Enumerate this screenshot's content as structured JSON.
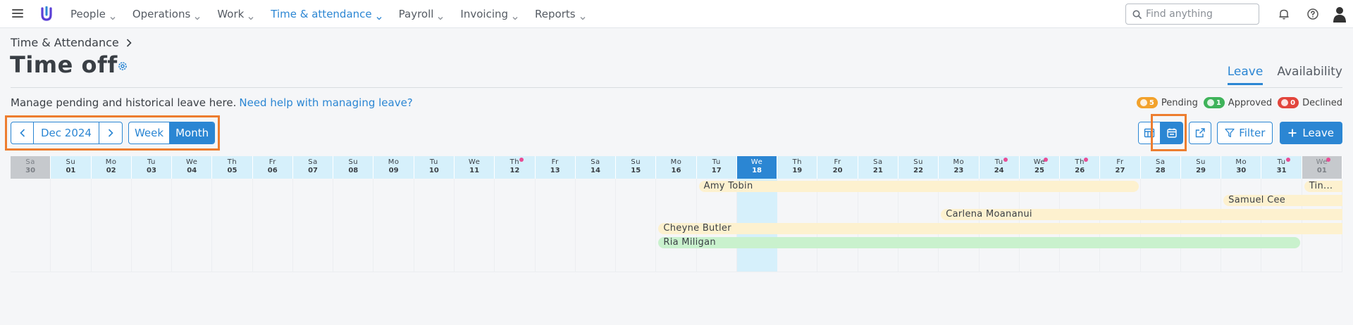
{
  "topbar": {
    "logo": "U",
    "nav": [
      {
        "label": "People",
        "active": false
      },
      {
        "label": "Operations",
        "active": false
      },
      {
        "label": "Work",
        "active": false
      },
      {
        "label": "Time & attendance",
        "active": true
      },
      {
        "label": "Payroll",
        "active": false
      },
      {
        "label": "Invoicing",
        "active": false
      },
      {
        "label": "Reports",
        "active": false
      }
    ],
    "search_placeholder": "Find anything",
    "icons": [
      "hamburger-icon",
      "search-icon",
      "bell-icon",
      "help-icon",
      "user-icon"
    ]
  },
  "header": {
    "breadcrumb": "Time & Attendance",
    "title": "Time off",
    "tabs": [
      {
        "label": "Leave",
        "active": true
      },
      {
        "label": "Availability",
        "active": false
      }
    ],
    "description": "Manage pending and historical leave here.",
    "help_link": "Need help with managing leave?"
  },
  "legend": [
    {
      "count": "5",
      "label": "Pending",
      "color": "#f2a22c",
      "icon": "hourglass-icon"
    },
    {
      "count": "1",
      "label": "Approved",
      "color": "#3fb35a",
      "icon": "check-icon"
    },
    {
      "count": "0",
      "label": "Declined",
      "color": "#e2453c",
      "icon": "exclamation-icon"
    }
  ],
  "controls": {
    "month": "Dec 2024",
    "views": [
      {
        "label": "Week",
        "active": false
      },
      {
        "label": "Month",
        "active": true
      }
    ],
    "filter_label": "Filter",
    "leave_label": "Leave",
    "tool_icons": [
      "table-view-icon",
      "calendar-view-icon",
      "external-link-icon"
    ]
  },
  "calendar": {
    "days": [
      {
        "dn": "Sa",
        "dd": "30",
        "state": "grey",
        "dot": false
      },
      {
        "dn": "Su",
        "dd": "01",
        "state": "",
        "dot": false
      },
      {
        "dn": "Mo",
        "dd": "02",
        "state": "",
        "dot": false
      },
      {
        "dn": "Tu",
        "dd": "03",
        "state": "",
        "dot": false
      },
      {
        "dn": "We",
        "dd": "04",
        "state": "",
        "dot": false
      },
      {
        "dn": "Th",
        "dd": "05",
        "state": "",
        "dot": false
      },
      {
        "dn": "Fr",
        "dd": "06",
        "state": "",
        "dot": false
      },
      {
        "dn": "Sa",
        "dd": "07",
        "state": "",
        "dot": false
      },
      {
        "dn": "Su",
        "dd": "08",
        "state": "",
        "dot": false
      },
      {
        "dn": "Mo",
        "dd": "09",
        "state": "",
        "dot": false
      },
      {
        "dn": "Tu",
        "dd": "10",
        "state": "",
        "dot": false
      },
      {
        "dn": "We",
        "dd": "11",
        "state": "",
        "dot": false
      },
      {
        "dn": "Th",
        "dd": "12",
        "state": "",
        "dot": true
      },
      {
        "dn": "Fr",
        "dd": "13",
        "state": "",
        "dot": false
      },
      {
        "dn": "Sa",
        "dd": "14",
        "state": "",
        "dot": false
      },
      {
        "dn": "Su",
        "dd": "15",
        "state": "",
        "dot": false
      },
      {
        "dn": "Mo",
        "dd": "16",
        "state": "",
        "dot": false
      },
      {
        "dn": "Tu",
        "dd": "17",
        "state": "",
        "dot": false
      },
      {
        "dn": "We",
        "dd": "18",
        "state": "today",
        "dot": false
      },
      {
        "dn": "Th",
        "dd": "19",
        "state": "",
        "dot": false
      },
      {
        "dn": "Fr",
        "dd": "20",
        "state": "",
        "dot": false
      },
      {
        "dn": "Sa",
        "dd": "21",
        "state": "",
        "dot": false
      },
      {
        "dn": "Su",
        "dd": "22",
        "state": "",
        "dot": false
      },
      {
        "dn": "Mo",
        "dd": "23",
        "state": "",
        "dot": false
      },
      {
        "dn": "Tu",
        "dd": "24",
        "state": "",
        "dot": true
      },
      {
        "dn": "We",
        "dd": "25",
        "state": "",
        "dot": true
      },
      {
        "dn": "Th",
        "dd": "26",
        "state": "",
        "dot": true
      },
      {
        "dn": "Fr",
        "dd": "27",
        "state": "",
        "dot": false
      },
      {
        "dn": "Sa",
        "dd": "28",
        "state": "",
        "dot": false
      },
      {
        "dn": "Su",
        "dd": "29",
        "state": "",
        "dot": false
      },
      {
        "dn": "Mo",
        "dd": "30",
        "state": "",
        "dot": false
      },
      {
        "dn": "Tu",
        "dd": "31",
        "state": "",
        "dot": true
      },
      {
        "dn": "We",
        "dd": "01",
        "state": "grey",
        "dot": true
      }
    ],
    "entries": [
      {
        "name": "Amy Tobin",
        "start": 17,
        "end": 27,
        "row": 0,
        "status": "pending",
        "open_right": false
      },
      {
        "name": "Tin...",
        "start": 32,
        "end": 32,
        "row": 0,
        "status": "pending",
        "open_right": true
      },
      {
        "name": "Samuel Cee",
        "start": 30,
        "end": 32,
        "row": 1,
        "status": "pending",
        "open_right": true
      },
      {
        "name": "Carlena Moananui",
        "start": 23,
        "end": 32,
        "row": 2,
        "status": "pending",
        "open_right": true
      },
      {
        "name": "Cheyne Butler",
        "start": 16,
        "end": 32,
        "row": 3,
        "status": "pending",
        "open_right": true
      },
      {
        "name": "Ria Miligan",
        "start": 16,
        "end": 31,
        "row": 4,
        "status": "approved",
        "open_right": false
      }
    ]
  },
  "colors": {
    "accent": "#2b86d3",
    "highlight": "#ed7d2f",
    "pending_bar": "#fdf1cf",
    "approved_bar": "#c9f1cd",
    "dot": "#e84c94"
  }
}
